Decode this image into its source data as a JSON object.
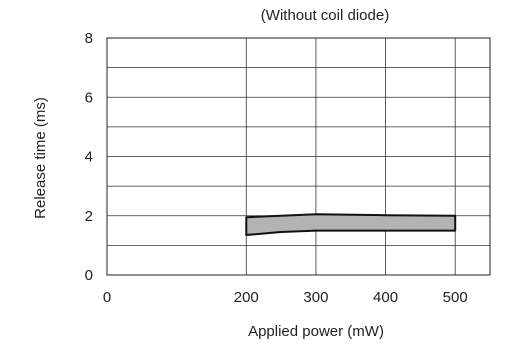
{
  "chart_data": {
    "type": "area",
    "title": "(Without coil diode)",
    "xlabel": "Applied power (mW)",
    "ylabel": "Release time (ms)",
    "xlim": [
      0,
      550
    ],
    "ylim": [
      0,
      8
    ],
    "x_ticks": [
      0,
      200,
      300,
      400,
      500
    ],
    "y_ticks": [
      0,
      2,
      4,
      6,
      8
    ],
    "x_tick_labels": [
      "0",
      "200",
      "300",
      "400",
      "500"
    ],
    "y_tick_labels": [
      "0",
      "2",
      "4",
      "6",
      "8"
    ],
    "grid": true,
    "band": {
      "x": [
        200,
        250,
        300,
        400,
        500
      ],
      "upper": [
        1.95,
        2.0,
        2.05,
        2.02,
        2.0
      ],
      "lower": [
        1.35,
        1.45,
        1.5,
        1.5,
        1.5
      ],
      "fill_color": "#b3b3b3",
      "edge_color": "#111111"
    }
  }
}
